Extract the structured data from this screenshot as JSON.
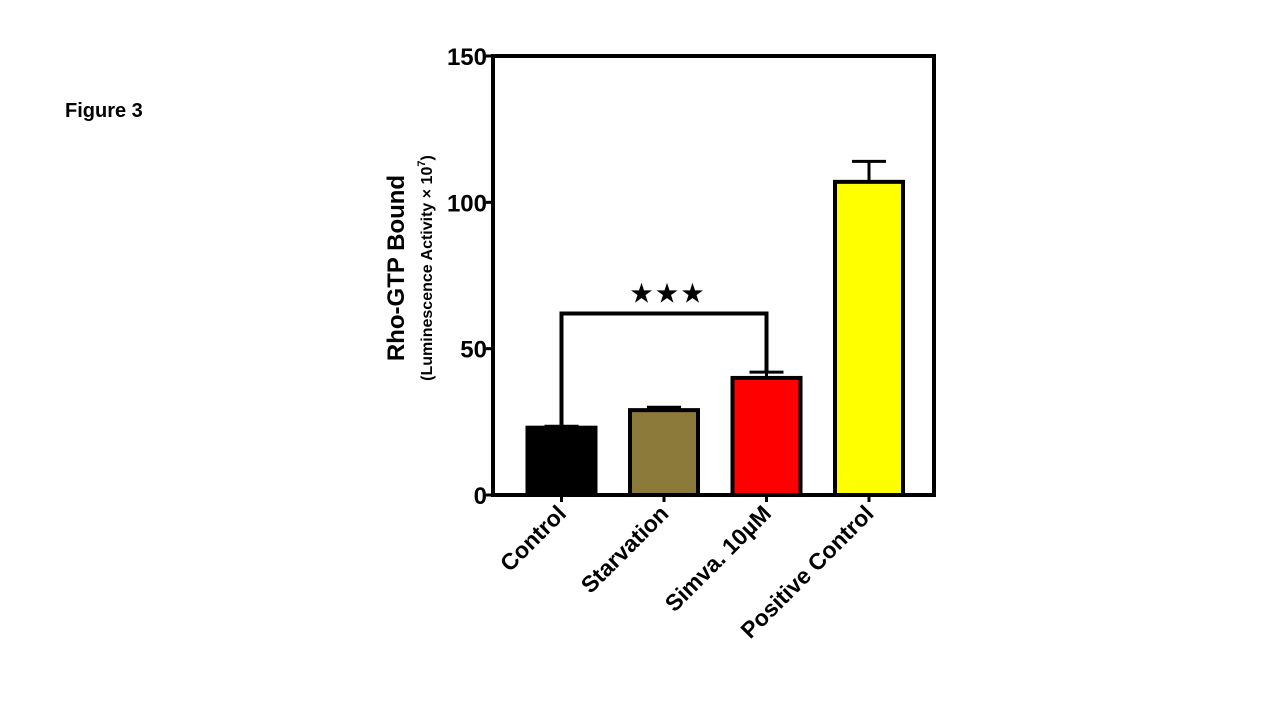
{
  "page": {
    "figure_label": "Figure 3"
  },
  "chart_data": {
    "type": "bar",
    "categories": [
      "Control",
      "Starvation",
      "Simva. 10µM",
      "Positive Control"
    ],
    "values": [
      23,
      29,
      40,
      107
    ],
    "errors": [
      0.5,
      1,
      2,
      7
    ],
    "colors": [
      "#000000",
      "#8b7a3a",
      "#ff0000",
      "#ffff00"
    ],
    "ylabel": "Rho-GTP Bound",
    "ylabel_sub": "(Luminescence Activity × 10",
    "ylabel_sub_exp": "7",
    "ylabel_sub_end": ")",
    "ylim": [
      0,
      150
    ],
    "yticks": [
      0,
      50,
      100,
      150
    ],
    "grid": false,
    "significance": {
      "from_category": "Control",
      "to_category": "Simva. 10µM",
      "value": 62,
      "marker": "★★★"
    }
  }
}
